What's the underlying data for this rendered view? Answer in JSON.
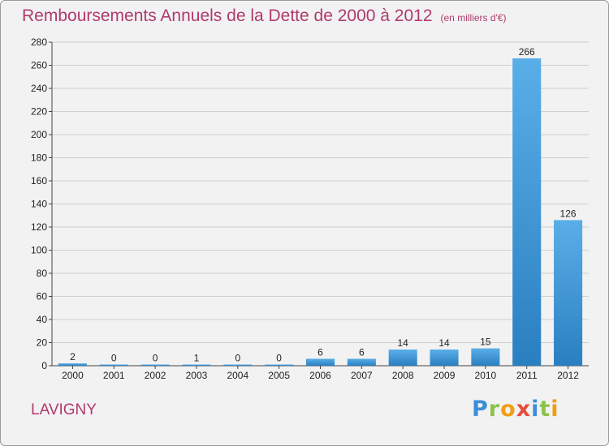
{
  "title": "Remboursements Annuels de la Dette de 2000 à 2012",
  "subtitle": "(en milliers d'€)",
  "commune": "LAVIGNY",
  "logo": {
    "letters": [
      "P",
      "r",
      "o",
      "x",
      "i",
      "t",
      "i"
    ],
    "colors": [
      "#3d8ed8",
      "#8bc34a",
      "#f39c12",
      "#e74c3c",
      "#3d8ed8",
      "#8bc34a",
      "#f39c12"
    ]
  },
  "colors": {
    "bar_light": "#5aaee8",
    "bar_dark": "#2a7fc0",
    "grid": "#cfcfcf",
    "axis": "#444444",
    "text": "#222222"
  },
  "chart_data": {
    "type": "bar",
    "title": "Remboursements Annuels de la Dette de 2000 à 2012",
    "subtitle": "(en milliers d'€)",
    "categories": [
      "2000",
      "2001",
      "2002",
      "2003",
      "2004",
      "2005",
      "2006",
      "2007",
      "2008",
      "2009",
      "2010",
      "2011",
      "2012"
    ],
    "values": [
      2,
      0,
      0,
      1,
      0,
      0,
      6,
      6,
      14,
      14,
      15,
      266,
      126
    ],
    "data_labels": [
      "2",
      "0",
      "0",
      "1",
      "0",
      "0",
      "6",
      "6",
      "14",
      "14",
      "15",
      "266",
      "126"
    ],
    "ylim": [
      0,
      280
    ],
    "yticks": [
      0,
      20,
      40,
      60,
      80,
      100,
      120,
      140,
      160,
      180,
      200,
      220,
      240,
      260,
      280
    ],
    "grid": true,
    "legend": "none"
  }
}
